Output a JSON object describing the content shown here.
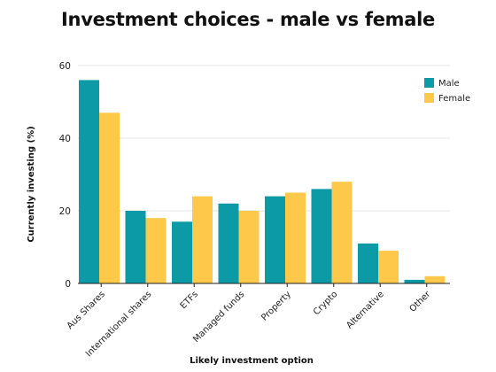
{
  "chart_data": {
    "type": "bar",
    "title": "Investment choices - male vs female",
    "xlabel": "Likely investment option",
    "ylabel": "Currently investing  (%)",
    "categories": [
      "Aus Shares",
      "International shares",
      "ETFs",
      "Managed funds",
      "Property",
      "Crypto",
      "Alternative",
      "Other"
    ],
    "series": [
      {
        "name": "Male",
        "color": "#0b9aa6",
        "values": [
          56,
          20,
          17,
          22,
          24,
          26,
          11,
          1
        ]
      },
      {
        "name": "Female",
        "color": "#fec84b",
        "values": [
          47,
          18,
          24,
          20,
          25,
          28,
          9,
          2
        ]
      }
    ],
    "ylim": [
      0,
      60
    ],
    "yticks": [
      0,
      20,
      40,
      60
    ],
    "grid": true,
    "legend": "top-right"
  }
}
